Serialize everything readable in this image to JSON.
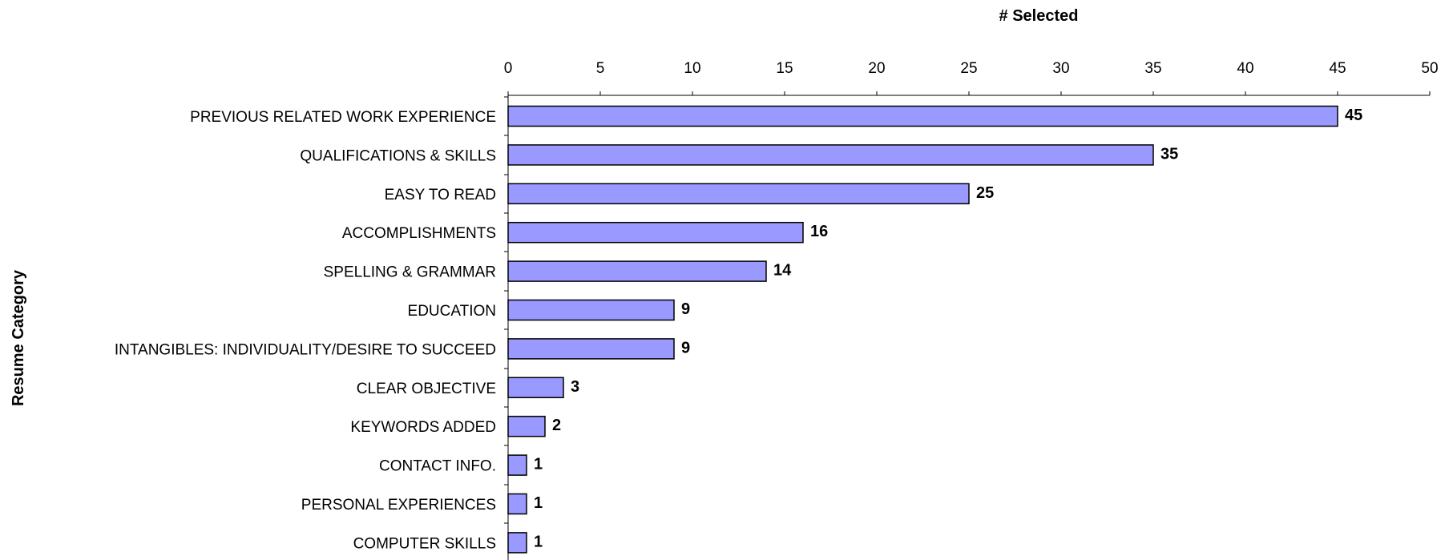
{
  "chart_data": {
    "type": "bar",
    "orientation": "horizontal",
    "title": "",
    "xlabel": "# Selected",
    "ylabel": "Resume Category",
    "xlim": [
      0,
      50
    ],
    "xticks": [
      0,
      5,
      10,
      15,
      20,
      25,
      30,
      35,
      40,
      45,
      50
    ],
    "x_axis_position": "top",
    "grid": false,
    "legend": "none",
    "bar_color": "#9999ff",
    "bar_edge_color": "#000000",
    "categories": [
      "PREVIOUS RELATED WORK EXPERIENCE",
      "QUALIFICATIONS & SKILLS",
      "EASY TO READ",
      "ACCOMPLISHMENTS",
      "SPELLING & GRAMMAR",
      "EDUCATION",
      "INTANGIBLES: INDIVIDUALITY/DESIRE TO SUCCEED",
      "CLEAR OBJECTIVE",
      "KEYWORDS ADDED",
      "CONTACT INFO.",
      "PERSONAL EXPERIENCES",
      "COMPUTER SKILLS"
    ],
    "values": [
      45,
      35,
      25,
      16,
      14,
      9,
      9,
      3,
      2,
      1,
      1,
      1
    ]
  }
}
